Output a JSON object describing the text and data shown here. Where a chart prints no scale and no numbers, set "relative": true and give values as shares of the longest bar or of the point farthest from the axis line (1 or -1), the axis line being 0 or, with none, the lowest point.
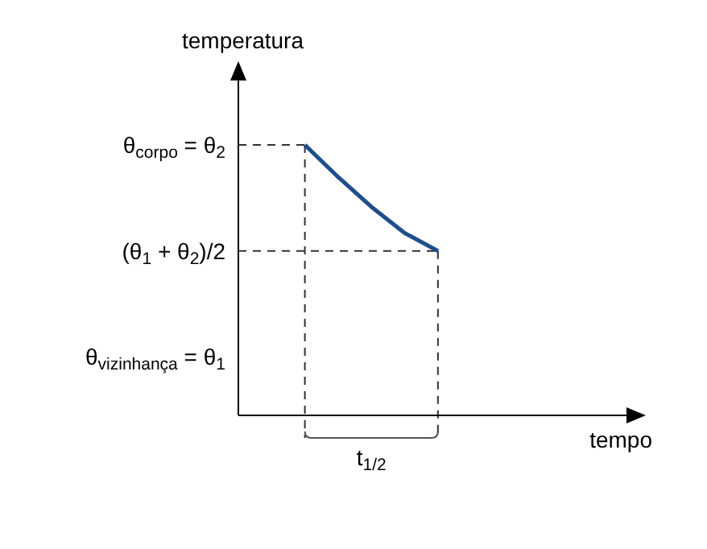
{
  "chart_data": {
    "type": "line",
    "relative": true,
    "xlabel": "tempo",
    "ylabel": "temperatura",
    "categories": [
      null,
      null,
      null,
      null,
      null,
      null,
      null,
      null,
      null,
      null,
      null
    ],
    "series": [
      {
        "color": "#1f4e8c",
        "values": [
          null,
          null,
          1,
          0.881,
          0.771,
          0.674,
          0.608,
          null,
          null,
          null,
          null
        ]
      }
    ],
    "ref_lines": [
      {
        "axis": "y",
        "value": 1,
        "label": "θ$_{corpo}$ = θ$_{2}$",
        "line_style": "dashed",
        "color": "#333333"
      },
      {
        "axis": "y",
        "value": 0.608,
        "label": "(θ$_{1}$ + θ$_{2}$)/2",
        "line_style": "dashed",
        "color": "#333333"
      }
    ],
    "annotations": [
      "θ$_{vizinhança}$ = θ$_{1}$",
      "t$_{1/2}$"
    ],
    "marker": "none",
    "line_style": "solid"
  }
}
